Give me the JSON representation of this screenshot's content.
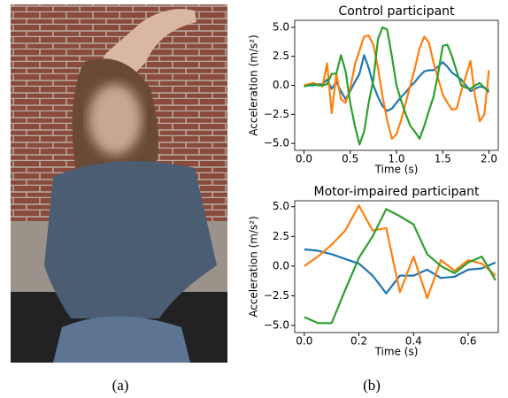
{
  "captions": [
    "(a)",
    "(b)"
  ],
  "chart_data": [
    {
      "type": "line",
      "title": "Control participant",
      "xlabel": "Time (s)",
      "ylabel": "Acceleration (m/s²)",
      "x": [
        0,
        0.05,
        0.1,
        0.15,
        0.2,
        0.25,
        0.3,
        0.35,
        0.4,
        0.45,
        0.5,
        0.55,
        0.6,
        0.65,
        0.7,
        0.75,
        0.8,
        0.85,
        0.9,
        0.95,
        1.0,
        1.05,
        1.1,
        1.15,
        1.2,
        1.25,
        1.3,
        1.35,
        1.4,
        1.45,
        1.5,
        1.55,
        1.6,
        1.65,
        1.7,
        1.75,
        1.8,
        1.85,
        1.9,
        1.95,
        2.0
      ],
      "series": [
        {
          "color": "#1f77b4",
          "values": [
            0,
            0,
            0,
            0.1,
            0.1,
            0.5,
            -0.3,
            0.3,
            -0.5,
            -1.2,
            -0.5,
            0.3,
            1.0,
            2.6,
            1.5,
            0,
            -1.0,
            -1.8,
            -2.2,
            -2.0,
            -1.5,
            -1.0,
            -0.6,
            -0.1,
            0.3,
            0.8,
            1.2,
            1.3,
            1.3,
            1.6,
            2.0,
            1.6,
            1.1,
            0.8,
            0.5,
            0,
            -0.5,
            -0.3,
            -0.1,
            -0.2,
            -0.4
          ]
        },
        {
          "color": "#ff7f0e",
          "values": [
            0,
            0.1,
            0.2,
            0.1,
            -0.1,
            1.9,
            -2.4,
            1.0,
            -1.2,
            -1.5,
            -0.3,
            1.8,
            3.0,
            4.2,
            4.3,
            3.5,
            1.5,
            -1.0,
            -3.0,
            -4.6,
            -4.2,
            -3.0,
            -1.5,
            0,
            1.5,
            3.2,
            4.2,
            3.7,
            2.0,
            0.6,
            -0.8,
            -1.5,
            -2.1,
            -2.0,
            -0.5,
            0.8,
            2.1,
            -1.0,
            -3.1,
            -2.5,
            1.3
          ]
        },
        {
          "color": "#2ca02c",
          "values": [
            -0.1,
            0,
            0.1,
            0,
            0,
            0.1,
            1.0,
            1.0,
            2.6,
            1.2,
            -1.5,
            -3.5,
            -5.1,
            -4.0,
            -1.5,
            0.5,
            4.0,
            5.0,
            4.8,
            2.5,
            0,
            -1.3,
            -2.5,
            -3.5,
            -4.0,
            -4.6,
            -3.5,
            -2.2,
            -1.0,
            1.0,
            3.4,
            3.5,
            2.5,
            1.2,
            0,
            -0.2,
            -0.3,
            0,
            0.2,
            -0.2,
            -0.6
          ]
        }
      ],
      "xlim": [
        -0.1,
        2.1
      ],
      "ylim": [
        -5.6,
        5.6
      ],
      "xticks": [
        {
          "value": 0,
          "label": "0.0"
        },
        {
          "value": 0.5,
          "label": "0.5"
        },
        {
          "value": 1,
          "label": "1.0"
        },
        {
          "value": 1.5,
          "label": "1.5"
        },
        {
          "value": 2,
          "label": "2.0"
        }
      ],
      "yticks": [
        {
          "value": -5,
          "label": "−5.0"
        },
        {
          "value": -2.5,
          "label": "−2.5"
        },
        {
          "value": 0,
          "label": "0.0"
        },
        {
          "value": 2.5,
          "label": "2.5"
        },
        {
          "value": 5,
          "label": "5.0"
        }
      ]
    },
    {
      "type": "line",
      "title": "Motor-impaired participant",
      "xlabel": "Time (s)",
      "ylabel": "Acceleration (m/s²)",
      "x": [
        0,
        0.05,
        0.1,
        0.15,
        0.2,
        0.25,
        0.3,
        0.35,
        0.4,
        0.45,
        0.5,
        0.55,
        0.6,
        0.65,
        0.7
      ],
      "series": [
        {
          "color": "#1f77b4",
          "values": [
            1.4,
            1.3,
            1.0,
            0.6,
            0.2,
            -0.8,
            -2.3,
            -0.8,
            -0.8,
            -0.3,
            -1.0,
            -0.9,
            -0.3,
            -0.2,
            0.3
          ]
        },
        {
          "color": "#ff7f0e",
          "values": [
            0,
            0.8,
            1.8,
            3.0,
            5.1,
            3.0,
            3.2,
            -2.2,
            0.8,
            -2.7,
            0.5,
            -0.4,
            0.5,
            0.2,
            -0.8
          ]
        },
        {
          "color": "#2ca02c",
          "values": [
            -4.3,
            -4.8,
            -4.8,
            -2.0,
            0.7,
            2.5,
            4.8,
            4.2,
            3.5,
            1.0,
            0,
            -0.6,
            0.3,
            0.8,
            -1.2
          ]
        }
      ],
      "xlim": [
        -0.035,
        0.71
      ],
      "ylim": [
        -5.6,
        5.5
      ],
      "xticks": [
        {
          "value": 0,
          "label": "0.0"
        },
        {
          "value": 0.2,
          "label": "0.2"
        },
        {
          "value": 0.4,
          "label": "0.4"
        },
        {
          "value": 0.6,
          "label": "0.6"
        }
      ],
      "yticks": [
        {
          "value": -5,
          "label": "−5.0"
        },
        {
          "value": -2.5,
          "label": "−2.5"
        },
        {
          "value": 0,
          "label": "0.0"
        },
        {
          "value": 2.5,
          "label": "2.5"
        },
        {
          "value": 5,
          "label": "5.0"
        }
      ]
    }
  ]
}
